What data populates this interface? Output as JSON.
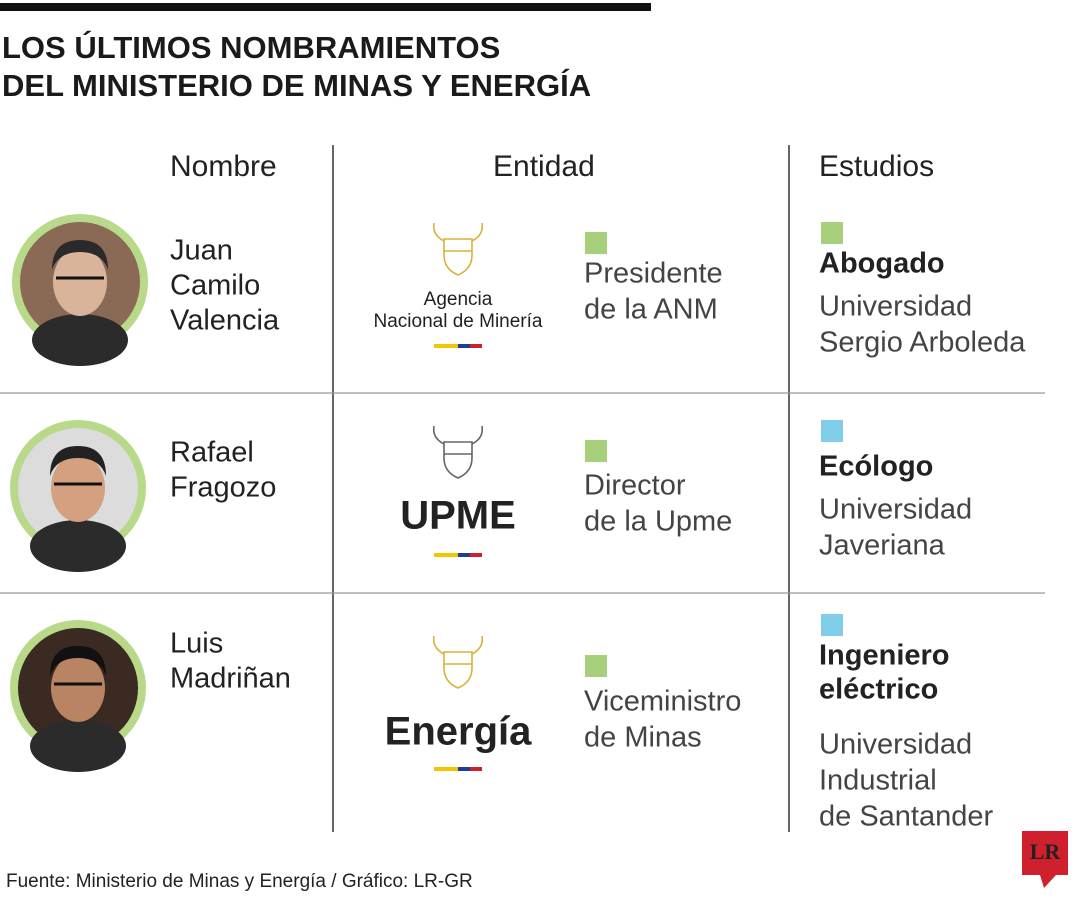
{
  "header": {
    "title": [
      "LOS ÚLTIMOS NOMBRAMIENTOS",
      "DEL MINISTERIO DE MINAS Y ENERGÍA"
    ]
  },
  "table": {
    "columns": [
      "Nombre",
      "Entidad",
      "Estudios"
    ],
    "rows": [
      {
        "name": [
          "Juan",
          "Camilo",
          "Valencia"
        ],
        "entity_logo": [
          "Agencia",
          "Nacional de Minería"
        ],
        "role": [
          "Presidente",
          "de la ANM"
        ],
        "degree": [
          "Abogado"
        ],
        "university": [
          "Universidad",
          "Sergio Arboleda"
        ]
      },
      {
        "name": [
          "Rafael",
          "Fragozo"
        ],
        "entity_logo": [
          "UPME"
        ],
        "role": [
          "Director",
          "de la Upme"
        ],
        "degree": [
          "Ecólogo"
        ],
        "university": [
          "Universidad",
          "Javeriana"
        ]
      },
      {
        "name": [
          "Luis",
          "Madriñan"
        ],
        "entity_logo": [
          "Energía"
        ],
        "role": [
          "Viceministro",
          "de Minas"
        ],
        "degree": [
          "Ingeniero",
          "eléctrico"
        ],
        "university": [
          "Universidad",
          "Industrial",
          "de Santander"
        ]
      }
    ]
  },
  "footer": {
    "source": "Fuente: Ministerio de Minas y Energía / Gráfico: LR-GR",
    "brand": "LR"
  }
}
